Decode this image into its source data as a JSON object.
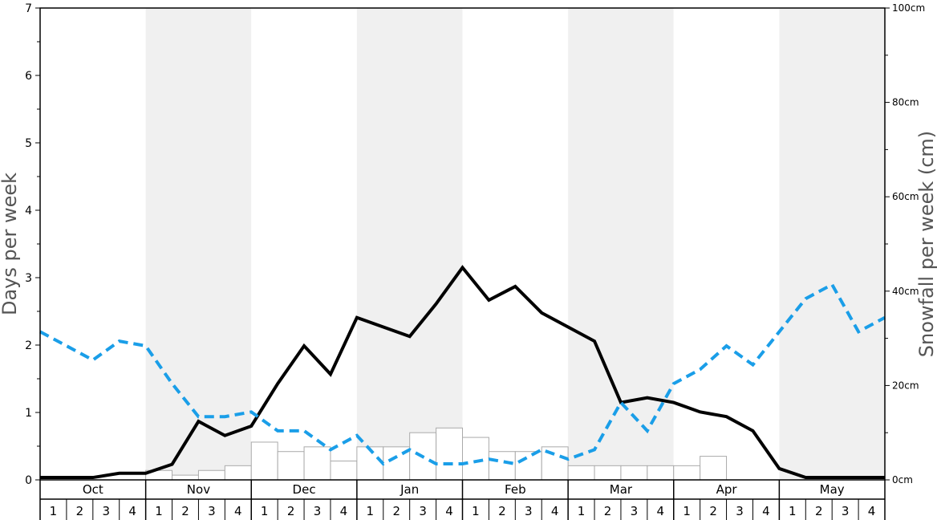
{
  "chart_data": {
    "type": "bar+line",
    "months": [
      "Oct",
      "Nov",
      "Dec",
      "Jan",
      "Feb",
      "Mar",
      "Apr",
      "May"
    ],
    "week_labels": [
      "1",
      "2",
      "3",
      "4"
    ],
    "left_axis": {
      "title": "Days per week",
      "range": [
        0,
        7
      ],
      "ticks": [
        "0",
        "1",
        "2",
        "3",
        "4",
        "5",
        "6",
        "7"
      ]
    },
    "right_axis": {
      "title": "Snowfall per week (cm)",
      "range": [
        0,
        100
      ],
      "ticks": [
        "0cm",
        "20cm",
        "40cm",
        "60cm",
        "80cm",
        "100cm"
      ]
    },
    "band_colors": [
      "#ffffff",
      "#f0f0f0"
    ],
    "series": [
      {
        "kind": "bar",
        "axis": "left",
        "color": "#ffffff",
        "stroke": "#aaaaaa",
        "values": [
          0,
          0,
          0,
          0,
          0.14,
          0.07,
          0.14,
          0.21,
          0.56,
          0.42,
          0.49,
          0.28,
          0.49,
          0.49,
          0.7,
          0.77,
          0.63,
          0.42,
          0.42,
          0.49,
          0.21,
          0.21,
          0.21,
          0.21,
          0.21,
          0.35,
          0,
          0,
          0,
          0,
          0,
          0
        ]
      },
      {
        "kind": "line",
        "axis": "right",
        "style": "solid",
        "color": "#000000",
        "values": [
          0.5,
          0.5,
          0.5,
          1.4,
          1.4,
          3.3,
          12.4,
          9.4,
          11.4,
          20.4,
          28.4,
          22.4,
          34.4,
          32.4,
          30.4,
          37.3,
          45,
          38.1,
          41,
          35.4,
          32.4,
          29.4,
          16.4,
          17.4,
          16.4,
          14.4,
          13.4,
          10.4,
          2.4,
          0.5,
          0.5,
          0.5,
          0.5
        ]
      },
      {
        "kind": "line",
        "axis": "right",
        "style": "dashed",
        "color": "#1a9ee8",
        "values": [
          31.4,
          28.4,
          25.4,
          29.4,
          28.4,
          20.4,
          13.4,
          13.4,
          14.4,
          10.4,
          10.4,
          6.4,
          9.4,
          3.4,
          6.4,
          3.4,
          3.4,
          4.4,
          3.4,
          6.4,
          4.4,
          6.4,
          16.4,
          10.4,
          20.4,
          23.4,
          28.4,
          24.4,
          31.4,
          38.4,
          41.4,
          31.4,
          34.4
        ]
      }
    ]
  }
}
